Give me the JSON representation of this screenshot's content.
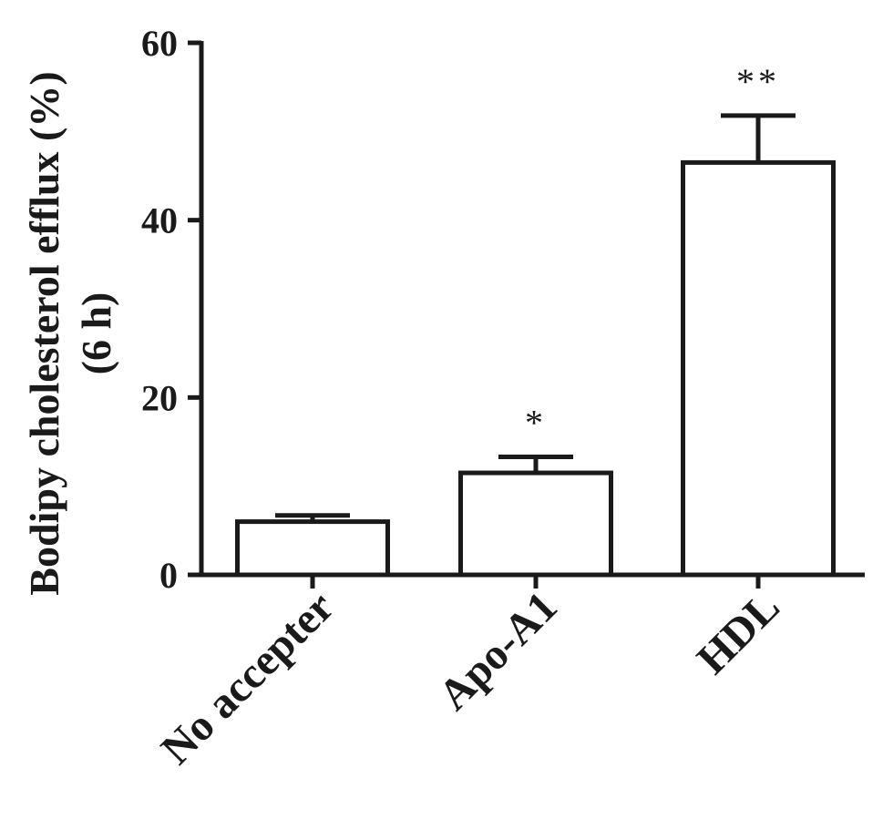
{
  "chart_data": {
    "type": "bar",
    "categories": [
      "No accepter",
      "Apo-A1",
      "HDL"
    ],
    "values": [
      6.0,
      11.5,
      46.5
    ],
    "errors": [
      0.7,
      1.8,
      5.3
    ],
    "significance": [
      "",
      "*",
      "**"
    ],
    "ylabel_lines": [
      "Bodipy cholesterol efflux (%)",
      "(6 h)"
    ],
    "ylim": [
      0,
      60
    ],
    "yticks": [
      0,
      20,
      40,
      60
    ],
    "ytick_labels": [
      "0",
      "20",
      "40",
      "60"
    ],
    "grid": false,
    "colors": {
      "bar_fill": "#ffffff",
      "bar_stroke": "#1a1a1a",
      "axis": "#1a1a1a"
    }
  }
}
